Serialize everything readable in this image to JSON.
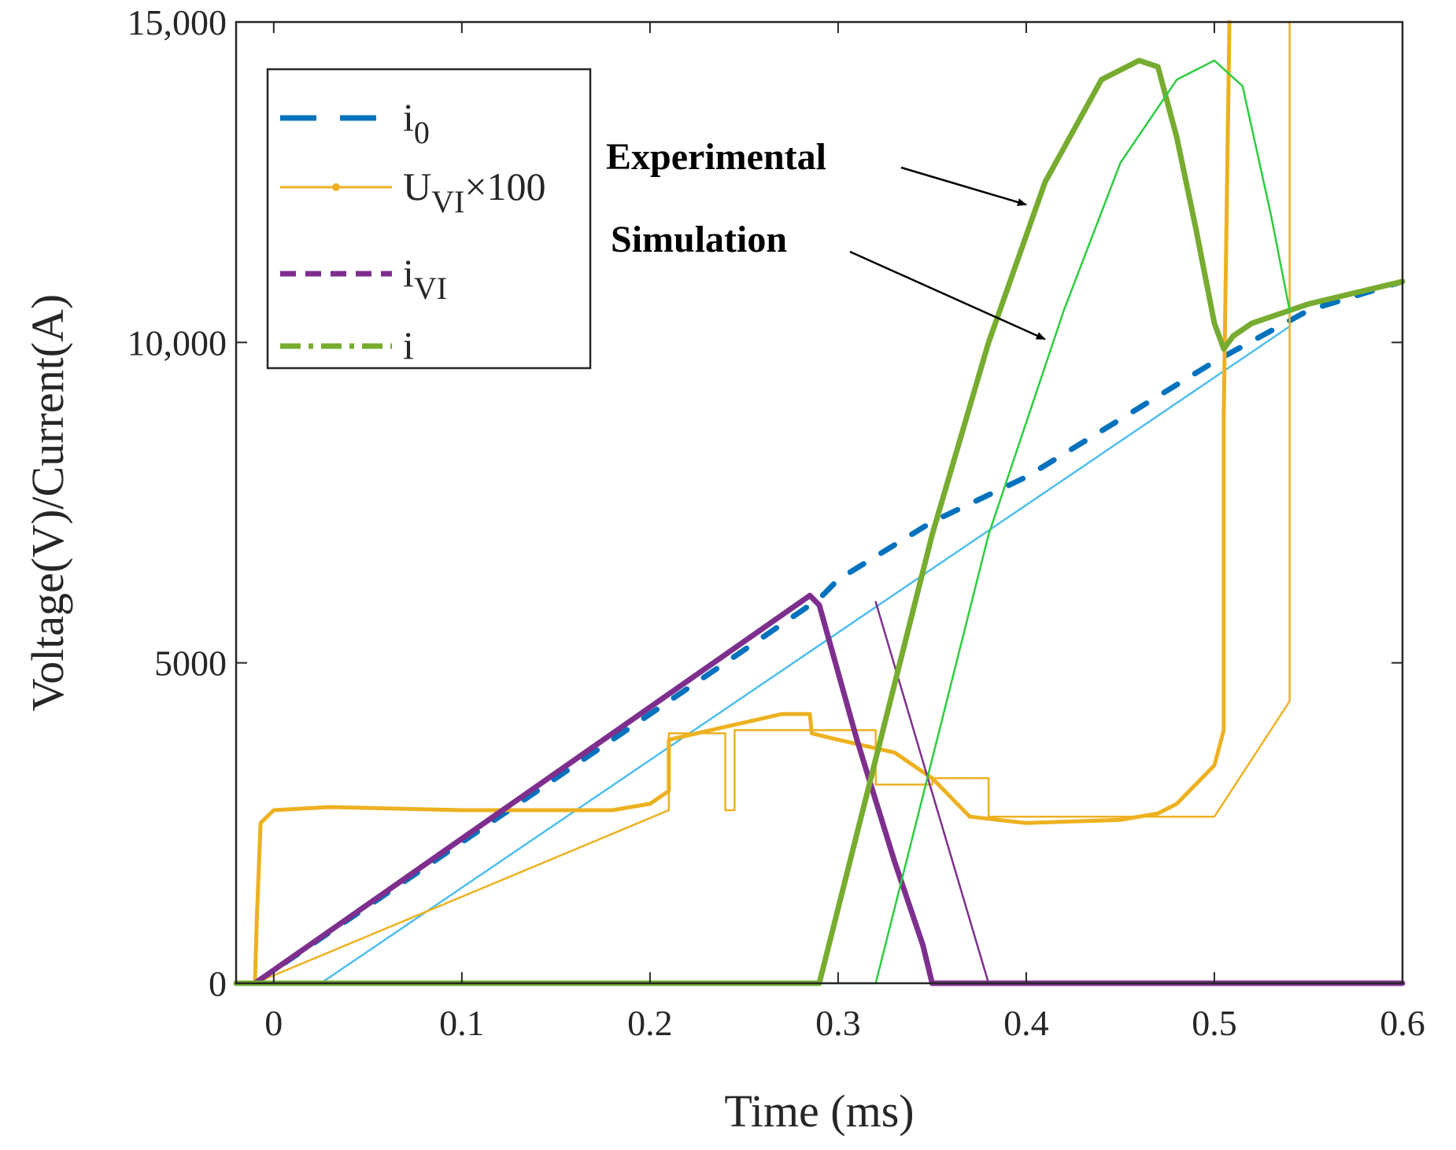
{
  "chart_data": {
    "type": "line",
    "xlabel": "Time (ms)",
    "ylabel": "Voltage(V)/Current(A)",
    "xlim": [
      -0.02,
      0.6
    ],
    "ylim": [
      0,
      15000
    ],
    "xticks": [
      0,
      0.1,
      0.2,
      0.3,
      0.4,
      0.5,
      0.6
    ],
    "xtick_labels": [
      "0",
      "0.1",
      "0.2",
      "0.3",
      "0.4",
      "0.5",
      "0.6"
    ],
    "yticks": [
      0,
      5000,
      10000,
      15000
    ],
    "ytick_labels": [
      "0",
      "5000",
      "10,000",
      "15,000"
    ],
    "grid": false,
    "legend_position": "top-left",
    "legend": [
      {
        "id": "i0",
        "base": "i",
        "sub": "0",
        "sup_suffix": "",
        "style": "dashed",
        "color": "#0072BD"
      },
      {
        "id": "uvi",
        "base": "U",
        "sub": "VI",
        "sup_suffix": "×100",
        "style": "solid-dot",
        "color": "#EDB120"
      },
      {
        "id": "ivi",
        "base": "i",
        "sub": "VI",
        "sup_suffix": "",
        "style": "dashed",
        "color": "#7E2F8E"
      },
      {
        "id": "i",
        "base": "i",
        "sub": "",
        "sup_suffix": "",
        "style": "dash-dot",
        "color": "#77AC30"
      }
    ],
    "annotations": [
      {
        "text": "Experimental",
        "arrow_to": [
          0.4,
          12150
        ]
      },
      {
        "text": "Simulation",
        "arrow_to": [
          0.41,
          10050
        ]
      }
    ],
    "series": [
      {
        "name": "i0",
        "kind": "experimental",
        "color": "#0072BD",
        "points": [
          [
            -0.01,
            0
          ],
          [
            0.29,
            6000
          ],
          [
            0.3,
            6300
          ],
          [
            0.35,
            7200
          ],
          [
            0.4,
            7900
          ],
          [
            0.45,
            8800
          ],
          [
            0.5,
            9700
          ],
          [
            0.55,
            10500
          ],
          [
            0.6,
            10950
          ]
        ]
      },
      {
        "name": "i0",
        "kind": "simulation",
        "color": "#4DBEEE",
        "points": [
          [
            0.025,
            0
          ],
          [
            0.54,
            10250
          ]
        ]
      },
      {
        "name": "UVI×100",
        "kind": "experimental",
        "color": "#EDB120",
        "points": [
          [
            -0.01,
            0
          ],
          [
            -0.009,
            1000
          ],
          [
            -0.007,
            2500
          ],
          [
            0.0,
            2700
          ],
          [
            0.03,
            2750
          ],
          [
            0.1,
            2700
          ],
          [
            0.18,
            2700
          ],
          [
            0.2,
            2800
          ],
          [
            0.21,
            3000
          ],
          [
            0.21,
            3800
          ],
          [
            0.24,
            4000
          ],
          [
            0.27,
            4200
          ],
          [
            0.285,
            4200
          ],
          [
            0.286,
            3900
          ],
          [
            0.3,
            3800
          ],
          [
            0.33,
            3600
          ],
          [
            0.35,
            3200
          ],
          [
            0.37,
            2600
          ],
          [
            0.4,
            2500
          ],
          [
            0.45,
            2550
          ],
          [
            0.47,
            2650
          ],
          [
            0.48,
            2800
          ],
          [
            0.5,
            3400
          ],
          [
            0.505,
            3950
          ],
          [
            0.505,
            8900
          ],
          [
            0.508,
            15000
          ]
        ]
      },
      {
        "name": "UVI×100",
        "kind": "simulation",
        "color": "#EDB120",
        "points": [
          [
            -0.01,
            0
          ],
          [
            0.21,
            2700
          ],
          [
            0.21,
            3900
          ],
          [
            0.24,
            3900
          ],
          [
            0.24,
            2700
          ],
          [
            0.24,
            2700
          ],
          [
            0.245,
            2700
          ],
          [
            0.245,
            3950
          ],
          [
            0.32,
            3950
          ],
          [
            0.32,
            3100
          ],
          [
            0.35,
            3100
          ],
          [
            0.35,
            3200
          ],
          [
            0.38,
            3200
          ],
          [
            0.38,
            2600
          ],
          [
            0.5,
            2600
          ],
          [
            0.54,
            4400
          ],
          [
            0.54,
            15000
          ]
        ]
      },
      {
        "name": "iVI",
        "kind": "experimental",
        "color": "#7E2F8E",
        "points": [
          [
            -0.01,
            0
          ],
          [
            0.285,
            6050
          ],
          [
            0.29,
            5900
          ],
          [
            0.31,
            3800
          ],
          [
            0.33,
            1900
          ],
          [
            0.345,
            600
          ],
          [
            0.35,
            0
          ],
          [
            0.6,
            0
          ]
        ]
      },
      {
        "name": "iVI",
        "kind": "simulation",
        "color": "#7E2F8E",
        "points": [
          [
            0.32,
            5950
          ],
          [
            0.38,
            0
          ]
        ]
      },
      {
        "name": "i",
        "kind": "experimental",
        "color": "#77AC30",
        "points": [
          [
            -0.02,
            0
          ],
          [
            0.29,
            0
          ],
          [
            0.32,
            3500
          ],
          [
            0.35,
            7000
          ],
          [
            0.38,
            10000
          ],
          [
            0.41,
            12500
          ],
          [
            0.44,
            14100
          ],
          [
            0.46,
            14400
          ],
          [
            0.47,
            14300
          ],
          [
            0.48,
            13200
          ],
          [
            0.49,
            11800
          ],
          [
            0.5,
            10300
          ],
          [
            0.505,
            9900
          ],
          [
            0.51,
            10100
          ],
          [
            0.52,
            10300
          ],
          [
            0.55,
            10600
          ],
          [
            0.6,
            10950
          ]
        ]
      },
      {
        "name": "i",
        "kind": "simulation",
        "color": "#2ECC40",
        "points": [
          [
            -0.02,
            0
          ],
          [
            0.32,
            0
          ],
          [
            0.35,
            3500
          ],
          [
            0.38,
            7000
          ],
          [
            0.42,
            10500
          ],
          [
            0.45,
            12800
          ],
          [
            0.48,
            14100
          ],
          [
            0.5,
            14400
          ],
          [
            0.515,
            14000
          ],
          [
            0.53,
            12000
          ],
          [
            0.54,
            10500
          ]
        ]
      }
    ]
  }
}
